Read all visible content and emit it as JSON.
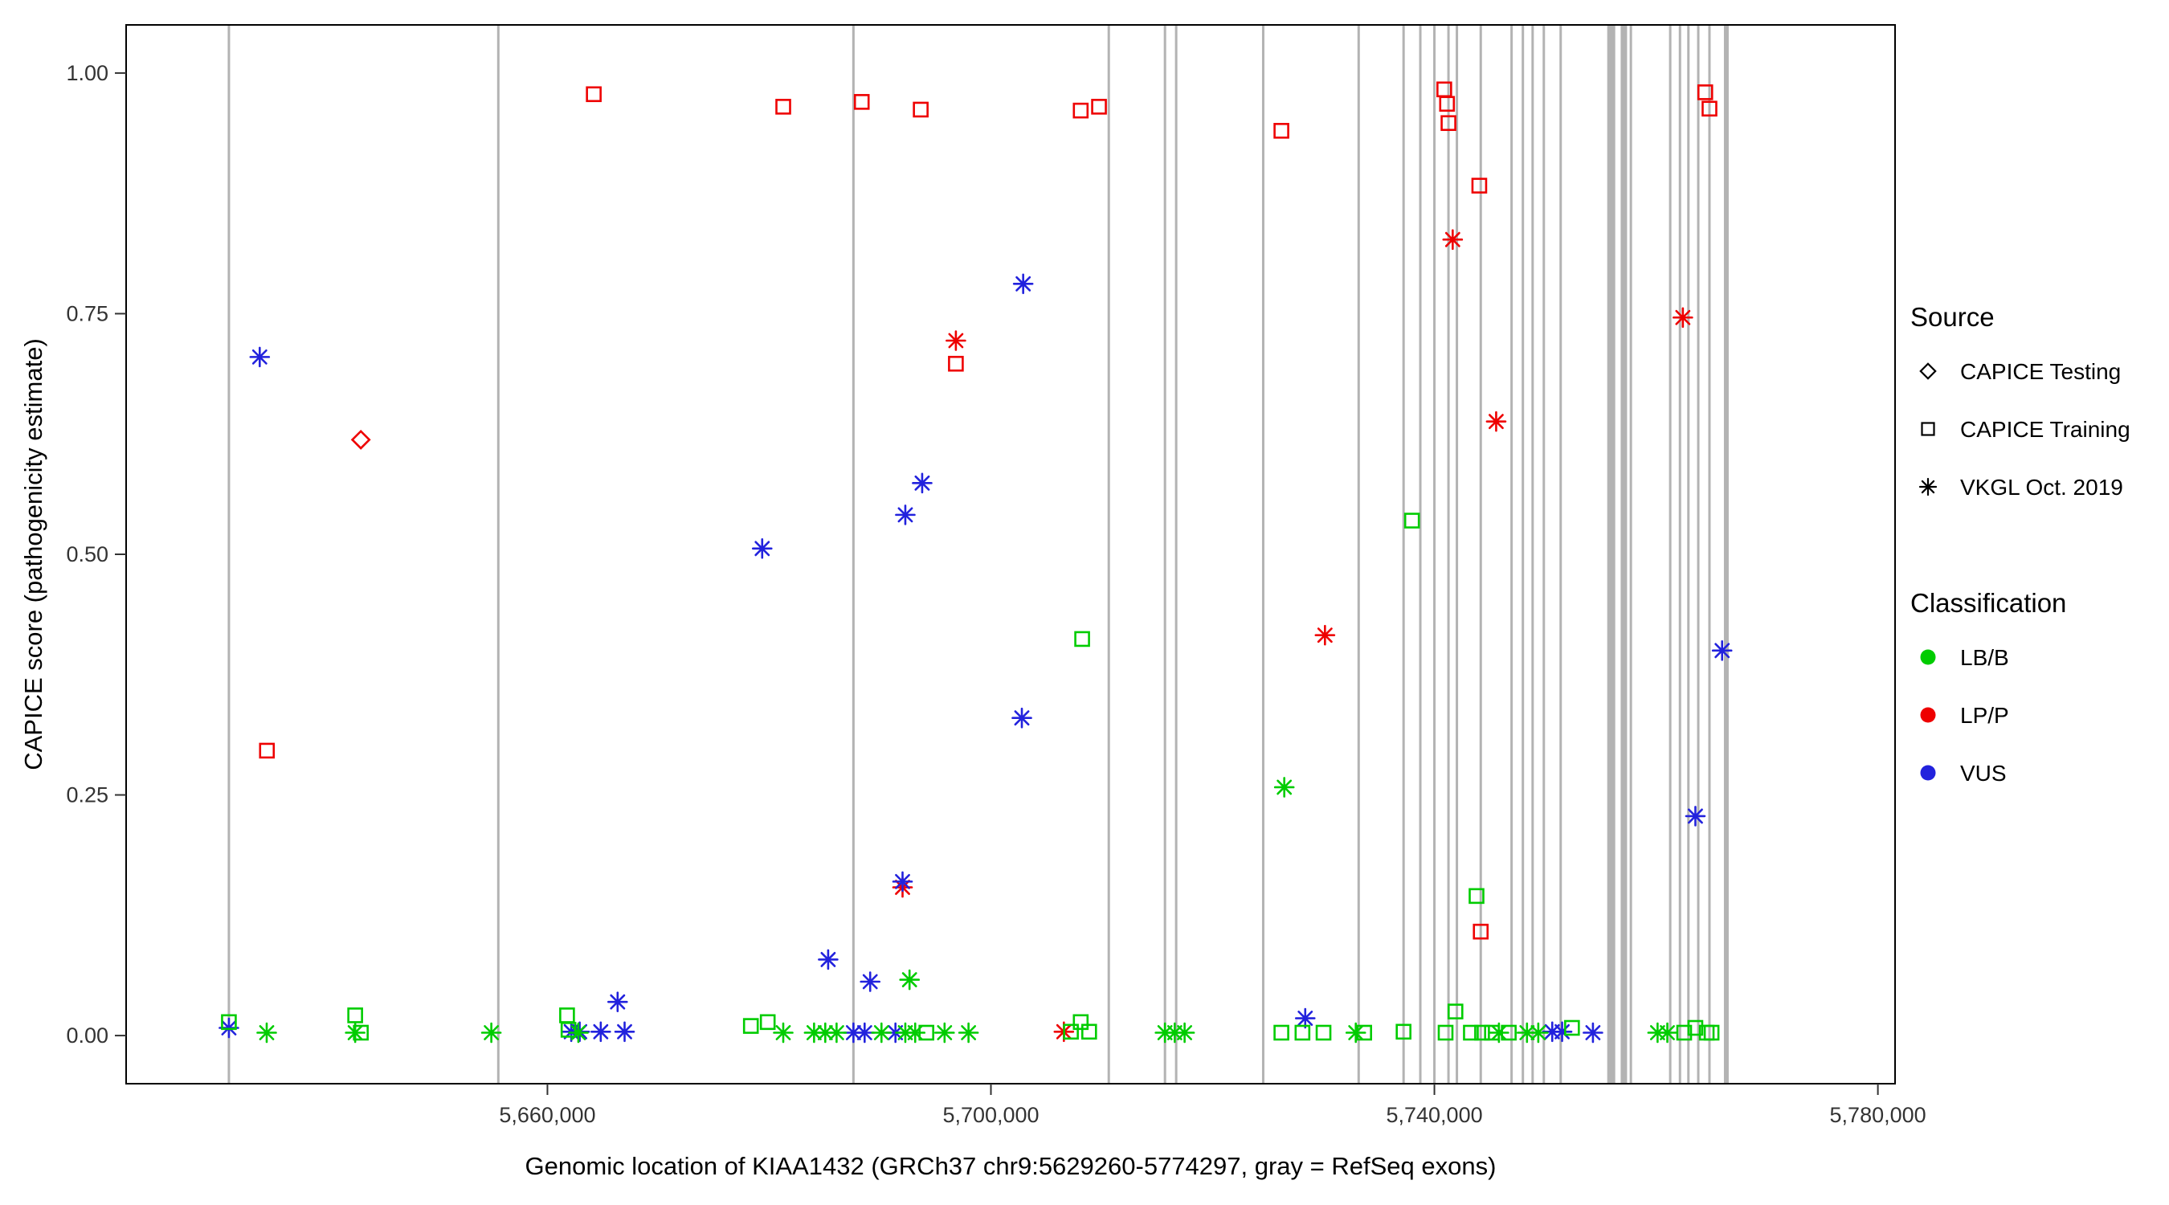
{
  "axes": {
    "x_label": "Genomic location of KIAA1432 (GRCh37 chr9:5629260-5774297, gray = RefSeq exons)",
    "y_label": "CAPICE score (pathogenicity estimate)"
  },
  "legend": {
    "source_title": "Source",
    "source_items": [
      {
        "shape": "diamond",
        "label": "CAPICE Testing"
      },
      {
        "shape": "square",
        "label": "CAPICE Training"
      },
      {
        "shape": "asterisk",
        "label": "VKGL Oct. 2019"
      }
    ],
    "classification_title": "Classification",
    "classification_items": [
      {
        "color_key": "LB/B",
        "label": "LB/B"
      },
      {
        "color_key": "LP/P",
        "label": "LP/P"
      },
      {
        "color_key": "VUS",
        "label": "VUS"
      }
    ]
  },
  "chart_data": {
    "type": "scatter",
    "title": "",
    "xlabel": "Genomic location of KIAA1432 (GRCh37 chr9:5629260-5774297, gray = RefSeq exons)",
    "ylabel": "CAPICE score (pathogenicity estimate)",
    "xlim": [
      5622000,
      5781550
    ],
    "ylim": [
      -0.05,
      1.05
    ],
    "x_tick_values": [
      5660000,
      5700000,
      5740000,
      5780000
    ],
    "x_tick_labels": [
      "5,660,000",
      "5,700,000",
      "5,740,000",
      "5,780,000"
    ],
    "y_tick_values": [
      0,
      0.25,
      0.5,
      0.75,
      1.0
    ],
    "y_tick_labels": [
      "0.00",
      "0.25",
      "0.50",
      "0.75",
      "1.00"
    ],
    "grid": false,
    "legend_position": "right",
    "colors": {
      "LB/B": "#00CC00",
      "LP/P": "#EE0000",
      "VUS": "#2222DD"
    },
    "shapes": {
      "testing": "diamond",
      "training": "square",
      "vkgl": "asterisk"
    },
    "exon_color": "#b3b3b3",
    "exons": [
      {
        "x": 5631270,
        "w": 3
      },
      {
        "x": 5655570,
        "w": 3
      },
      {
        "x": 5687600,
        "w": 3
      },
      {
        "x": 5710630,
        "w": 3
      },
      {
        "x": 5715700,
        "w": 3
      },
      {
        "x": 5716710,
        "w": 3
      },
      {
        "x": 5724560,
        "w": 3
      },
      {
        "x": 5733170,
        "w": 3
      },
      {
        "x": 5737220,
        "w": 3
      },
      {
        "x": 5738730,
        "w": 3
      },
      {
        "x": 5740000,
        "w": 3
      },
      {
        "x": 5741270,
        "w": 3
      },
      {
        "x": 5742030,
        "w": 3
      },
      {
        "x": 5744180,
        "w": 3
      },
      {
        "x": 5746960,
        "w": 3
      },
      {
        "x": 5747980,
        "w": 3
      },
      {
        "x": 5748860,
        "w": 3
      },
      {
        "x": 5749870,
        "w": 3
      },
      {
        "x": 5751390,
        "w": 3
      },
      {
        "x": 5755950,
        "w": 10
      },
      {
        "x": 5757090,
        "w": 8
      },
      {
        "x": 5757720,
        "w": 3
      },
      {
        "x": 5761270,
        "w": 3
      },
      {
        "x": 5762150,
        "w": 3
      },
      {
        "x": 5762910,
        "w": 3
      },
      {
        "x": 5763800,
        "w": 3
      },
      {
        "x": 5764810,
        "w": 3
      },
      {
        "x": 5766330,
        "w": 6
      }
    ],
    "points": [
      {
        "x": 5634700,
        "y": 0.296,
        "c": "LP/P",
        "s": "training"
      },
      {
        "x": 5664180,
        "y": 0.978,
        "c": "LP/P",
        "s": "training"
      },
      {
        "x": 5681270,
        "y": 0.965,
        "c": "LP/P",
        "s": "training"
      },
      {
        "x": 5688350,
        "y": 0.97,
        "c": "LP/P",
        "s": "training"
      },
      {
        "x": 5693670,
        "y": 0.962,
        "c": "LP/P",
        "s": "training"
      },
      {
        "x": 5708100,
        "y": 0.961,
        "c": "LP/P",
        "s": "training"
      },
      {
        "x": 5709750,
        "y": 0.965,
        "c": "LP/P",
        "s": "training"
      },
      {
        "x": 5726200,
        "y": 0.94,
        "c": "LP/P",
        "s": "training"
      },
      {
        "x": 5740890,
        "y": 0.983,
        "c": "LP/P",
        "s": "training"
      },
      {
        "x": 5741140,
        "y": 0.968,
        "c": "LP/P",
        "s": "training"
      },
      {
        "x": 5741270,
        "y": 0.948,
        "c": "LP/P",
        "s": "training"
      },
      {
        "x": 5744050,
        "y": 0.883,
        "c": "LP/P",
        "s": "training"
      },
      {
        "x": 5696840,
        "y": 0.698,
        "c": "LP/P",
        "s": "training"
      },
      {
        "x": 5744180,
        "y": 0.108,
        "c": "LP/P",
        "s": "training"
      },
      {
        "x": 5764430,
        "y": 0.98,
        "c": "LP/P",
        "s": "training"
      },
      {
        "x": 5764810,
        "y": 0.963,
        "c": "LP/P",
        "s": "training"
      },
      {
        "x": 5643170,
        "y": 0.619,
        "c": "LP/P",
        "s": "testing"
      },
      {
        "x": 5696840,
        "y": 0.722,
        "c": "LP/P",
        "s": "vkgl"
      },
      {
        "x": 5741650,
        "y": 0.827,
        "c": "LP/P",
        "s": "vkgl"
      },
      {
        "x": 5745570,
        "y": 0.638,
        "c": "LP/P",
        "s": "vkgl"
      },
      {
        "x": 5730130,
        "y": 0.416,
        "c": "LP/P",
        "s": "vkgl"
      },
      {
        "x": 5762410,
        "y": 0.746,
        "c": "LP/P",
        "s": "vkgl"
      },
      {
        "x": 5692030,
        "y": 0.154,
        "c": "LP/P",
        "s": "vkgl"
      },
      {
        "x": 5706580,
        "y": 0.004,
        "c": "LP/P",
        "s": "vkgl"
      },
      {
        "x": 5634050,
        "y": 0.705,
        "c": "VUS",
        "s": "vkgl"
      },
      {
        "x": 5679370,
        "y": 0.506,
        "c": "VUS",
        "s": "vkgl"
      },
      {
        "x": 5702910,
        "y": 0.781,
        "c": "VUS",
        "s": "vkgl"
      },
      {
        "x": 5693800,
        "y": 0.574,
        "c": "VUS",
        "s": "vkgl"
      },
      {
        "x": 5692280,
        "y": 0.541,
        "c": "VUS",
        "s": "vkgl"
      },
      {
        "x": 5702790,
        "y": 0.33,
        "c": "VUS",
        "s": "vkgl"
      },
      {
        "x": 5685320,
        "y": 0.079,
        "c": "VUS",
        "s": "vkgl"
      },
      {
        "x": 5689110,
        "y": 0.056,
        "c": "VUS",
        "s": "vkgl"
      },
      {
        "x": 5666330,
        "y": 0.035,
        "c": "VUS",
        "s": "vkgl"
      },
      {
        "x": 5692030,
        "y": 0.16,
        "c": "VUS",
        "s": "vkgl"
      },
      {
        "x": 5765950,
        "y": 0.4,
        "c": "VUS",
        "s": "vkgl"
      },
      {
        "x": 5763540,
        "y": 0.228,
        "c": "VUS",
        "s": "vkgl"
      },
      {
        "x": 5728350,
        "y": 0.018,
        "c": "VUS",
        "s": "vkgl"
      },
      {
        "x": 5631270,
        "y": 0.008,
        "c": "VUS",
        "s": "vkgl"
      },
      {
        "x": 5662150,
        "y": 0.004,
        "c": "VUS",
        "s": "vkgl"
      },
      {
        "x": 5662910,
        "y": 0.004,
        "c": "VUS",
        "s": "vkgl"
      },
      {
        "x": 5664810,
        "y": 0.004,
        "c": "VUS",
        "s": "vkgl"
      },
      {
        "x": 5666960,
        "y": 0.004,
        "c": "VUS",
        "s": "vkgl"
      },
      {
        "x": 5687600,
        "y": 0.003,
        "c": "VUS",
        "s": "vkgl"
      },
      {
        "x": 5688610,
        "y": 0.003,
        "c": "VUS",
        "s": "vkgl"
      },
      {
        "x": 5691390,
        "y": 0.003,
        "c": "VUS",
        "s": "vkgl"
      },
      {
        "x": 5750630,
        "y": 0.004,
        "c": "VUS",
        "s": "vkgl"
      },
      {
        "x": 5751520,
        "y": 0.004,
        "c": "VUS",
        "s": "vkgl"
      },
      {
        "x": 5754300,
        "y": 0.003,
        "c": "VUS",
        "s": "vkgl"
      },
      {
        "x": 5642660,
        "y": 0.021,
        "c": "LB/B",
        "s": "training"
      },
      {
        "x": 5643170,
        "y": 0.003,
        "c": "LB/B",
        "s": "training"
      },
      {
        "x": 5661770,
        "y": 0.021,
        "c": "LB/B",
        "s": "training"
      },
      {
        "x": 5661900,
        "y": 0.006,
        "c": "LB/B",
        "s": "training"
      },
      {
        "x": 5678350,
        "y": 0.01,
        "c": "LB/B",
        "s": "training"
      },
      {
        "x": 5679870,
        "y": 0.014,
        "c": "LB/B",
        "s": "training"
      },
      {
        "x": 5708230,
        "y": 0.412,
        "c": "LB/B",
        "s": "training"
      },
      {
        "x": 5737980,
        "y": 0.535,
        "c": "LB/B",
        "s": "training"
      },
      {
        "x": 5743800,
        "y": 0.145,
        "c": "LB/B",
        "s": "training"
      },
      {
        "x": 5741900,
        "y": 0.025,
        "c": "LB/B",
        "s": "training"
      },
      {
        "x": 5694180,
        "y": 0.003,
        "c": "LB/B",
        "s": "training"
      },
      {
        "x": 5707220,
        "y": 0.004,
        "c": "LB/B",
        "s": "training"
      },
      {
        "x": 5708100,
        "y": 0.014,
        "c": "LB/B",
        "s": "training"
      },
      {
        "x": 5708860,
        "y": 0.004,
        "c": "LB/B",
        "s": "training"
      },
      {
        "x": 5726200,
        "y": 0.003,
        "c": "LB/B",
        "s": "training"
      },
      {
        "x": 5728100,
        "y": 0.003,
        "c": "LB/B",
        "s": "training"
      },
      {
        "x": 5730000,
        "y": 0.003,
        "c": "LB/B",
        "s": "training"
      },
      {
        "x": 5733670,
        "y": 0.003,
        "c": "LB/B",
        "s": "training"
      },
      {
        "x": 5737220,
        "y": 0.004,
        "c": "LB/B",
        "s": "training"
      },
      {
        "x": 5741010,
        "y": 0.003,
        "c": "LB/B",
        "s": "training"
      },
      {
        "x": 5743290,
        "y": 0.003,
        "c": "LB/B",
        "s": "training"
      },
      {
        "x": 5744300,
        "y": 0.003,
        "c": "LB/B",
        "s": "training"
      },
      {
        "x": 5745190,
        "y": 0.003,
        "c": "LB/B",
        "s": "training"
      },
      {
        "x": 5746710,
        "y": 0.003,
        "c": "LB/B",
        "s": "training"
      },
      {
        "x": 5752410,
        "y": 0.008,
        "c": "LB/B",
        "s": "training"
      },
      {
        "x": 5762530,
        "y": 0.003,
        "c": "LB/B",
        "s": "training"
      },
      {
        "x": 5763540,
        "y": 0.008,
        "c": "LB/B",
        "s": "training"
      },
      {
        "x": 5764560,
        "y": 0.003,
        "c": "LB/B",
        "s": "training"
      },
      {
        "x": 5765000,
        "y": 0.003,
        "c": "LB/B",
        "s": "training"
      },
      {
        "x": 5631270,
        "y": 0.014,
        "c": "LB/B",
        "s": "training"
      },
      {
        "x": 5634680,
        "y": 0.003,
        "c": "LB/B",
        "s": "vkgl"
      },
      {
        "x": 5642660,
        "y": 0.003,
        "c": "LB/B",
        "s": "vkgl"
      },
      {
        "x": 5654940,
        "y": 0.003,
        "c": "LB/B",
        "s": "vkgl"
      },
      {
        "x": 5662790,
        "y": 0.003,
        "c": "LB/B",
        "s": "vkgl"
      },
      {
        "x": 5681270,
        "y": 0.003,
        "c": "LB/B",
        "s": "vkgl"
      },
      {
        "x": 5684050,
        "y": 0.003,
        "c": "LB/B",
        "s": "vkgl"
      },
      {
        "x": 5685060,
        "y": 0.003,
        "c": "LB/B",
        "s": "vkgl"
      },
      {
        "x": 5686080,
        "y": 0.003,
        "c": "LB/B",
        "s": "vkgl"
      },
      {
        "x": 5690130,
        "y": 0.003,
        "c": "LB/B",
        "s": "vkgl"
      },
      {
        "x": 5692280,
        "y": 0.003,
        "c": "LB/B",
        "s": "vkgl"
      },
      {
        "x": 5693170,
        "y": 0.003,
        "c": "LB/B",
        "s": "vkgl"
      },
      {
        "x": 5695820,
        "y": 0.003,
        "c": "LB/B",
        "s": "vkgl"
      },
      {
        "x": 5697980,
        "y": 0.003,
        "c": "LB/B",
        "s": "vkgl"
      },
      {
        "x": 5692660,
        "y": 0.058,
        "c": "LB/B",
        "s": "vkgl"
      },
      {
        "x": 5726460,
        "y": 0.258,
        "c": "LB/B",
        "s": "vkgl"
      },
      {
        "x": 5715700,
        "y": 0.003,
        "c": "LB/B",
        "s": "vkgl"
      },
      {
        "x": 5716580,
        "y": 0.003,
        "c": "LB/B",
        "s": "vkgl"
      },
      {
        "x": 5717470,
        "y": 0.003,
        "c": "LB/B",
        "s": "vkgl"
      },
      {
        "x": 5732910,
        "y": 0.003,
        "c": "LB/B",
        "s": "vkgl"
      },
      {
        "x": 5745820,
        "y": 0.003,
        "c": "LB/B",
        "s": "vkgl"
      },
      {
        "x": 5748350,
        "y": 0.003,
        "c": "LB/B",
        "s": "vkgl"
      },
      {
        "x": 5749370,
        "y": 0.003,
        "c": "LB/B",
        "s": "vkgl"
      },
      {
        "x": 5760130,
        "y": 0.003,
        "c": "LB/B",
        "s": "vkgl"
      },
      {
        "x": 5761010,
        "y": 0.003,
        "c": "LB/B",
        "s": "vkgl"
      }
    ]
  }
}
